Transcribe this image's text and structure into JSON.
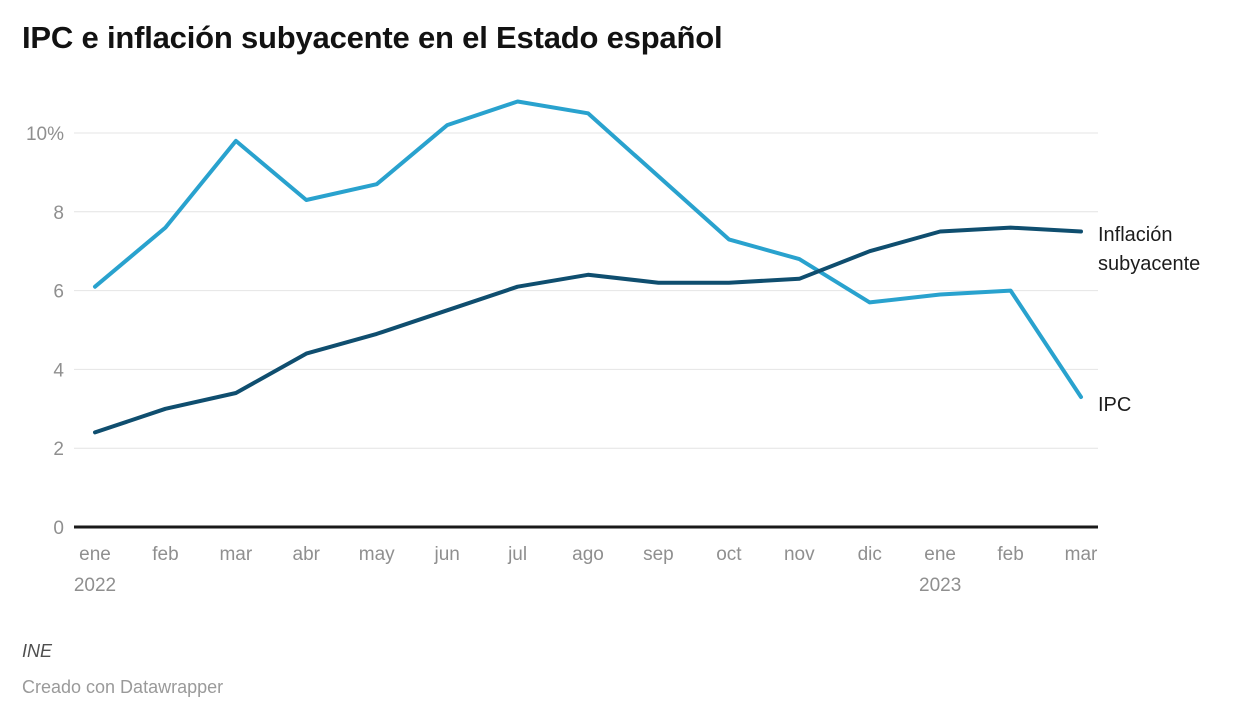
{
  "title": "IPC e inflación subyacente en el Estado español",
  "legend": {
    "subyacente": "Inflación subyacente",
    "ipc": "IPC"
  },
  "footer": {
    "source": "INE",
    "attribution": "Creado con Datawrapper"
  },
  "colors": {
    "ipc_line": "#29a2ce",
    "subyacente_line": "#0f4e6f",
    "gridline": "#e4e4e4",
    "baseline": "#1a1a1a",
    "tick_text": "#8f8f8f"
  },
  "chart_data": {
    "type": "line",
    "title": "IPC e inflación subyacente en el Estado español",
    "x_tick_labels": [
      "ene",
      "feb",
      "mar",
      "abr",
      "may",
      "jun",
      "jul",
      "ago",
      "sep",
      "oct",
      "nov",
      "dic",
      "ene",
      "feb",
      "mar"
    ],
    "year_labels": [
      {
        "text": "2022",
        "index": 0
      },
      {
        "text": "2023",
        "index": 12
      }
    ],
    "y_ticks": [
      0,
      2,
      4,
      6,
      8,
      10
    ],
    "y_tick_labels": [
      "0",
      "2",
      "4",
      "6",
      "8",
      "10%"
    ],
    "ylim": [
      0,
      11.2
    ],
    "grid": true,
    "legend_position": "end-of-line",
    "series": [
      {
        "name": "IPC",
        "color": "#29a2ce",
        "values": [
          6.1,
          7.6,
          9.8,
          8.3,
          8.7,
          10.2,
          10.8,
          10.5,
          8.9,
          7.3,
          6.8,
          5.7,
          5.9,
          6.0,
          3.3
        ]
      },
      {
        "name": "Inflación subyacente",
        "color": "#0f4e6f",
        "values": [
          2.4,
          3.0,
          3.4,
          4.4,
          4.9,
          5.5,
          6.1,
          6.4,
          6.2,
          6.2,
          6.3,
          7.0,
          7.5,
          7.6,
          7.5
        ]
      }
    ],
    "xlabel": "",
    "ylabel": ""
  }
}
